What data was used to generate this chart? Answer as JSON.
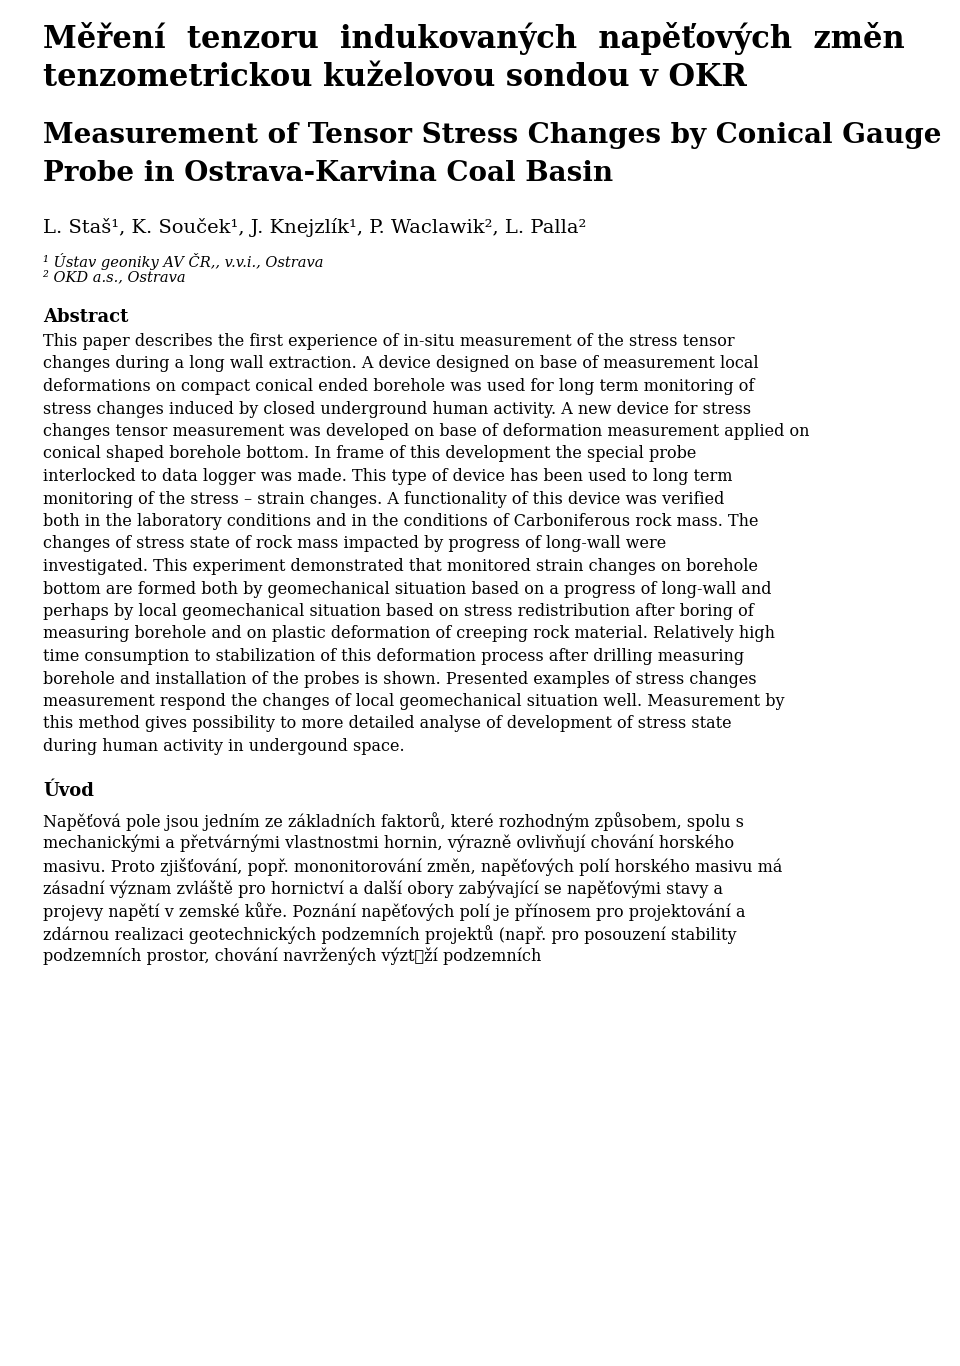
{
  "bg_color": "#ffffff",
  "text_color": "#000000",
  "page_width": 9.6,
  "page_height": 13.66,
  "title_cz_line1": "Měření  tenzoru  indukovaných  napěťových  změn",
  "title_cz_line2": "tenzometrickou kuželovou sondou v OKR",
  "title_en_line1": "Measurement of Tensor Stress Changes by Conical Gauge",
  "title_en_line2": "Probe in Ostrava-Karvina Coal Basin",
  "author_line": "L. Staš¹, K. Souček¹, J. Knejzlík¹, P. Waclawik², L. Palla²",
  "affil1": "¹ Ústav geoniky AV ČR,, v.v.i., Ostrava",
  "affil2": "² OKD a.s., Ostrava",
  "abstract_title": "Abstract",
  "abstract_body": "This paper describes the first experience of in-situ measurement of the stress tensor changes during a long wall extraction. A device designed on base of measurement local deformations on compact conical ended borehole was used for long term monitoring of stress changes induced by closed underground human activity. A new device for stress changes tensor measurement was developed on base of deformation measurement applied on conical shaped borehole bottom. In frame of this development the special probe interlocked to data logger was made. This type of device has been used to long term monitoring of the stress – strain changes. A functionality of this device was verified both in the laboratory conditions and in the conditions of Carboniferous rock mass. The changes of stress state of rock mass impacted by progress of long-wall were investigated. This experiment demonstrated that monitored strain changes on borehole bottom are formed both by geomechanical situation based on a progress of long-wall and perhaps by local geomechanical situation based on stress redistribution after boring of measuring borehole and on plastic deformation of creeping rock material. Relatively high time consumption to stabilization of this deformation process after drilling measuring borehole and installation of the probes is shown. Presented examples of stress changes measurement respond the changes of local geomechanical situation well. Measurement by this method gives possibility to more detailed analyse of development of stress state during human activity in undergound space.",
  "uvod_title": "Úvod",
  "uvod_body": "Napěťová pole jsou jedním ze základních faktorů, které rozhodným způsobem, spolu s mechanickými a přetvárnými vlastnostmi hornin, výrazně ovlivňují chování horského masivu. Proto zjišťování, popř. mononitorování změn, napěťových polí horského masivu má zásadní význam zvláště pro hornictví a další obory zabývající se napěťovými stavy a projevy napětí v zemské kůře. Poznání napěťových polí je přínosem pro projektování a zdárnou realizaci geotechnických podzemních projektů (např. pro posouzení stability podzemních prostor, chování navržených výztुží podzemních"
}
